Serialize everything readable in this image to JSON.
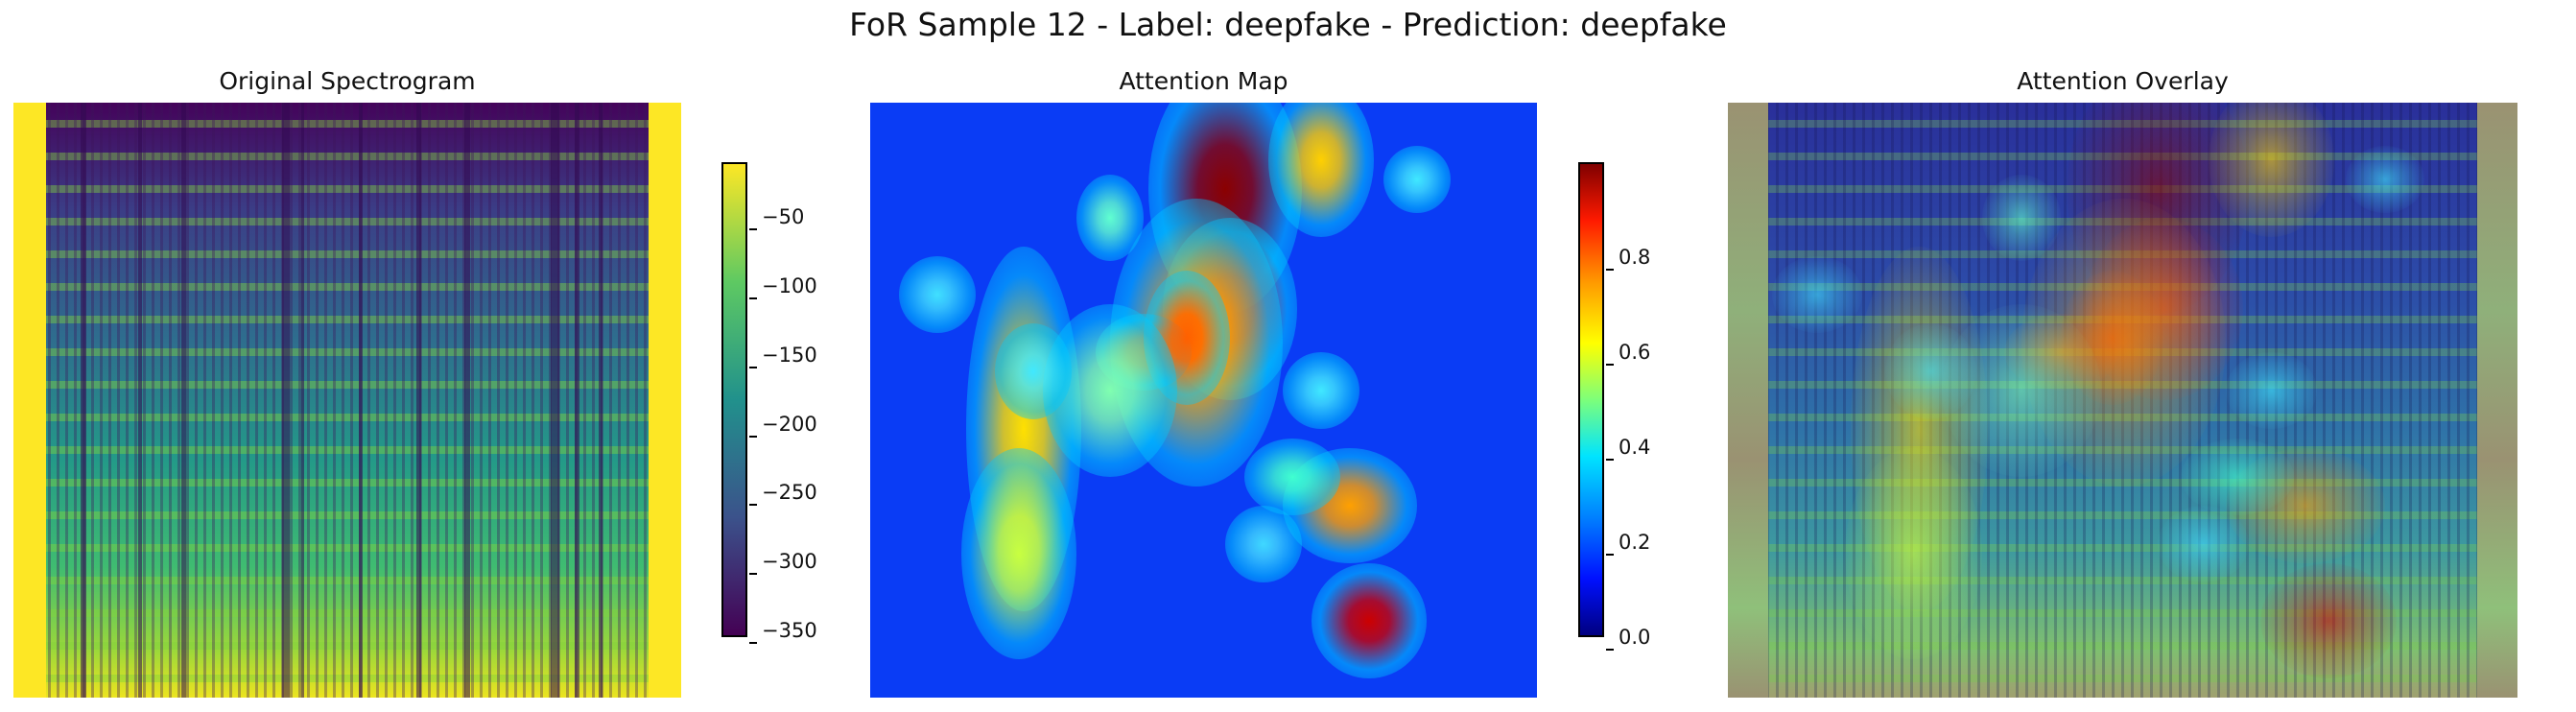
{
  "figure": {
    "suptitle": "FoR Sample 12 - Label: deepfake - Prediction: deepfake"
  },
  "chart_data": [
    {
      "type": "heatmap",
      "title": "Original Spectrogram",
      "axes": "off",
      "colormap": "viridis",
      "colorbar": {
        "ticks": [
          -50,
          -100,
          -150,
          -200,
          -250,
          -300,
          -350
        ],
        "tick_labels": [
          "−50",
          "−100",
          "−150",
          "−200",
          "−250",
          "−300",
          "−350"
        ],
        "range": [
          -355,
          -10
        ]
      }
    },
    {
      "type": "heatmap",
      "title": "Attention Map",
      "axes": "off",
      "colormap": "jet",
      "colorbar": {
        "ticks": [
          0.8,
          0.6,
          0.4,
          0.2,
          0.0
        ],
        "tick_labels": [
          "0.8",
          "0.6",
          "0.4",
          "0.2",
          "0.0"
        ],
        "range": [
          0.0,
          1.0
        ]
      }
    },
    {
      "type": "heatmap",
      "title": "Attention Overlay",
      "axes": "off",
      "colormap": "jet over viridis"
    }
  ]
}
